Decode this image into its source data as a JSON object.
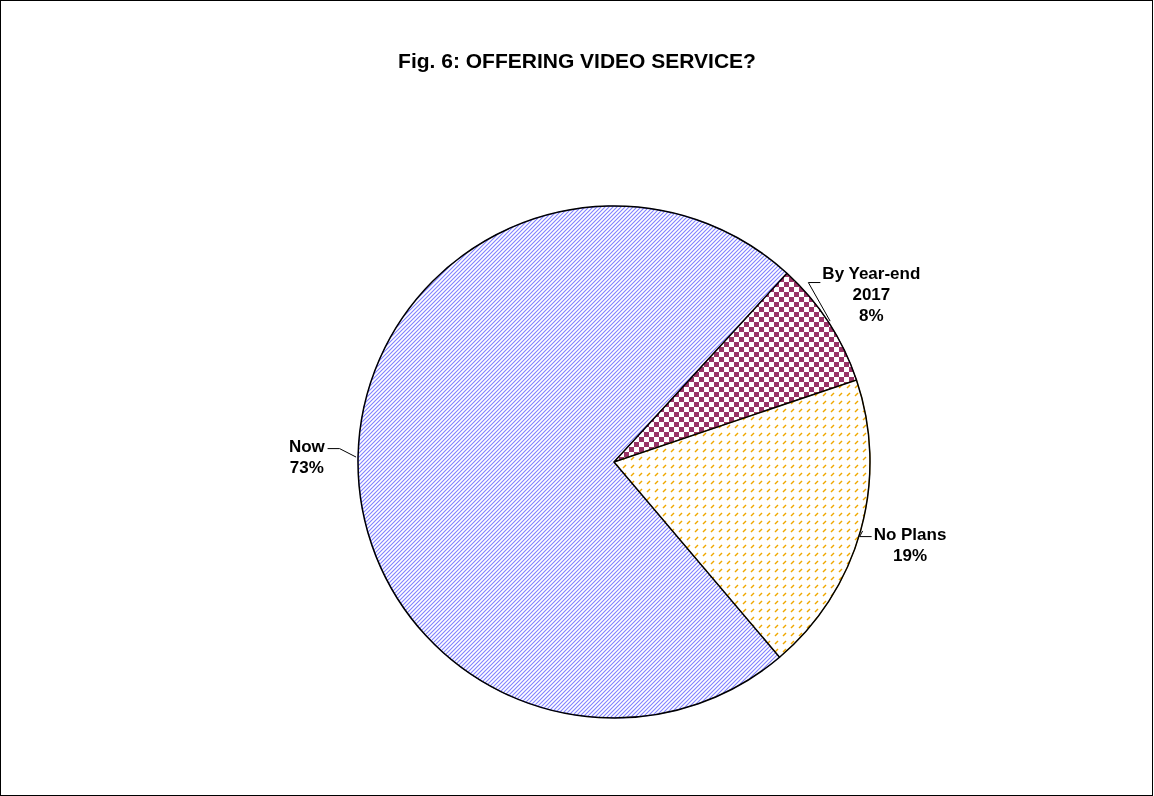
{
  "chart_data": {
    "type": "pie",
    "title": "Fig. 6: OFFERING VIDEO SERVICE?",
    "categories": [
      "Now",
      "By Year-end 2017",
      "No Plans"
    ],
    "values": [
      73,
      8,
      19
    ],
    "colors": [
      "#8080ff",
      "#993366",
      "#f0a800"
    ],
    "value_labels": [
      "73%",
      "8%",
      "19%"
    ]
  }
}
